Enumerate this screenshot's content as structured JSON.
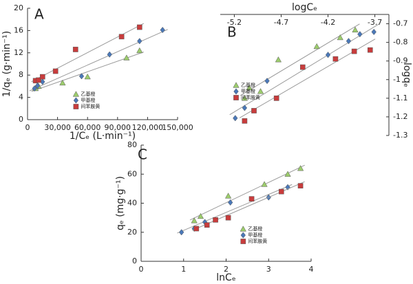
{
  "chart_data": [
    {
      "type": "scatter",
      "title": "A",
      "xlabel": "1/Cₑ (L·min⁻¹)",
      "ylabel": "1/qₑ (g·min⁻¹)",
      "xlim": [
        0,
        150000
      ],
      "ylim": [
        0,
        20
      ],
      "xticks": [
        0,
        {
          "value": 30000,
          "label": "30,000"
        },
        {
          "value": 60000,
          "label": "60,000"
        },
        {
          "value": 90000,
          "label": "90,000"
        },
        {
          "value": 120000,
          "label": "120,000"
        },
        {
          "value": 150000,
          "label": "150,000"
        }
      ],
      "yticks": [
        0,
        4,
        8,
        12,
        16,
        20
      ],
      "x_axis_position": "bottom",
      "y_axis_position": "left",
      "legend": "lower center",
      "trendline": true,
      "series": [
        {
          "name": "乙基橙",
          "color": "#9ccc6c",
          "marker": "triangle",
          "x": [
            8000,
            11000,
            35000,
            60000,
            99000,
            112000
          ],
          "values": [
            5.6,
            6,
            6.6,
            7.7,
            11.1,
            12.4
          ]
        },
        {
          "name": "甲基橙",
          "color": "#4a78b8",
          "marker": "diamond",
          "x": [
            7000,
            10000,
            15000,
            54000,
            82000,
            112000,
            135000
          ],
          "values": [
            5.6,
            6.1,
            6.8,
            7.8,
            11.7,
            14.1,
            16.1
          ]
        },
        {
          "name": "间苯胺黄",
          "color": "#c83c3c",
          "marker": "square",
          "x": [
            8000,
            11000,
            15000,
            28000,
            48000,
            94000,
            112000
          ],
          "values": [
            7,
            7.1,
            7.7,
            8.7,
            12.6,
            14.9,
            16.6
          ]
        }
      ]
    },
    {
      "type": "scatter",
      "title": "B",
      "xlabel": "logCₑ",
      "ylabel": "logqₑ",
      "xlim": [
        -5.35,
        -3.55
      ],
      "ylim": [
        -1.3,
        -0.65
      ],
      "xticks": [
        -5.2,
        -4.7,
        -4.2,
        -3.7
      ],
      "yticks": [
        -0.7,
        -0.8,
        -0.9,
        -1,
        -1.1,
        -1.2,
        -1.3
      ],
      "x_axis_position": "top",
      "y_axis_position": "right",
      "legend": "lower left",
      "trendline": true,
      "series": [
        {
          "name": "乙基橙",
          "color": "#9ccc6c",
          "marker": "triangle",
          "x": [
            -5.09,
            -5.04,
            -4.92,
            -4.73,
            -4.32,
            -4.07,
            -3.91
          ],
          "values": [
            -1.1,
            -1.044,
            -1.063,
            -0.893,
            -0.822,
            -0.774,
            -0.733
          ]
        },
        {
          "name": "甲基橙",
          "color": "#4a78b8",
          "marker": "diamond",
          "x": [
            -5.19,
            -5.09,
            -4.85,
            -4.2,
            -3.98,
            -3.86,
            -3.71
          ],
          "values": [
            -1.207,
            -1.152,
            -1.007,
            -0.867,
            -0.793,
            -0.756,
            -0.744
          ]
        },
        {
          "name": "间苯胺黄",
          "color": "#c83c3c",
          "marker": "square",
          "x": [
            -5.09,
            -4.99,
            -4.75,
            -4.47,
            -4.12,
            -3.92,
            -3.75
          ],
          "values": [
            -1.222,
            -1.167,
            -1.1,
            -0.933,
            -0.889,
            -0.848,
            -0.841
          ]
        }
      ]
    },
    {
      "type": "scatter",
      "title": "C",
      "xlabel": "lnCₑ",
      "ylabel": "qₑ (mg·g⁻¹)",
      "xlim": [
        0,
        4
      ],
      "ylim": [
        0,
        80
      ],
      "xticks": [
        0,
        1,
        2,
        3,
        4
      ],
      "yticks": [
        0,
        20,
        40,
        60,
        80
      ],
      "x_axis_position": "bottom",
      "y_axis_position": "left",
      "legend": "lower right",
      "trendline": true,
      "series": [
        {
          "name": "乙基橙",
          "color": "#9ccc6c",
          "marker": "triangle",
          "x": [
            1.25,
            1.4,
            2.05,
            2.9,
            3.45,
            3.75
          ],
          "values": [
            28,
            31,
            45,
            53,
            60,
            64
          ]
        },
        {
          "name": "甲基橙",
          "color": "#4a78b8",
          "marker": "diamond",
          "x": [
            0.95,
            1.25,
            1.5,
            2.1,
            3.0,
            3.45
          ],
          "values": [
            20,
            22.5,
            27,
            40.5,
            44,
            51
          ]
        },
        {
          "name": "间苯胺黄",
          "color": "#c83c3c",
          "marker": "square",
          "x": [
            1.3,
            1.55,
            1.75,
            2.05,
            2.6,
            3.3,
            3.75
          ],
          "values": [
            22.5,
            25,
            28.5,
            30,
            43,
            48,
            52
          ]
        }
      ]
    }
  ]
}
